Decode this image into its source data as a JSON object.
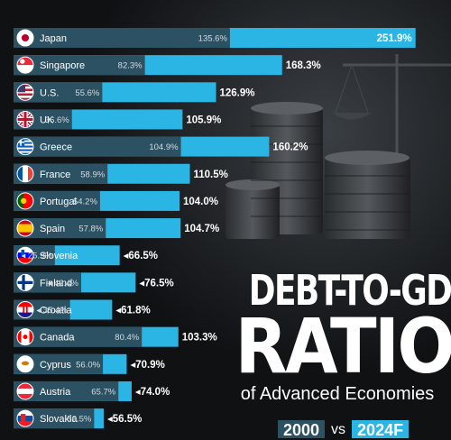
{
  "chart_data": {
    "type": "bar",
    "title": "DEBT-TO-GDP RATIO",
    "subtitle": "of Advanced Economies",
    "legend": [
      {
        "label": "2000",
        "color": "#2b5163"
      },
      {
        "label": "vs",
        "color": ""
      },
      {
        "label": "2024F",
        "color": "#2bb5e5"
      }
    ],
    "xlim": [
      0,
      260
    ],
    "categories": [
      "Japan",
      "Singapore",
      "U.S.",
      "UK",
      "Greece",
      "France",
      "Portugal",
      "Spain",
      "Slovenia",
      "Finland",
      "Croatia",
      "Canada",
      "Cyprus",
      "Austria",
      "Slovakia"
    ],
    "series": [
      {
        "name": "2000",
        "values": [
          135.6,
          82.3,
          55.6,
          36.6,
          104.9,
          58.9,
          54.2,
          57.8,
          25.9,
          42.4,
          35.4,
          80.4,
          56.0,
          65.7,
          50.5
        ]
      },
      {
        "name": "2024F",
        "values": [
          251.9,
          168.3,
          126.9,
          105.9,
          160.2,
          110.5,
          104.0,
          104.7,
          66.5,
          76.5,
          61.8,
          103.3,
          70.9,
          74.0,
          56.5
        ]
      }
    ],
    "labels_2000": [
      "135.6%",
      "82.3%",
      "55.6%",
      "36.6%",
      "104.9%",
      "58.9%",
      "54.2%",
      "57.8%",
      "◂ 25.9%",
      "◂ 42.4%",
      "◂ 35.4%",
      "80.4%",
      "56.0%",
      "65.7%",
      "50.5%"
    ],
    "labels_2024": [
      "251.9%",
      "168.3%",
      "126.9%",
      "105.9%",
      "160.2%",
      "110.5%",
      "104.0%",
      "104.7%",
      "◂66.5%",
      "◂76.5%",
      "◂61.8%",
      "103.3%",
      "◂70.9%",
      "◂74.0%",
      "◂56.5%"
    ],
    "flags": [
      "japan-flag-icon",
      "singapore-flag-icon",
      "us-flag-icon",
      "uk-flag-icon",
      "greece-flag-icon",
      "france-flag-icon",
      "portugal-flag-icon",
      "spain-flag-icon",
      "slovenia-flag-icon",
      "finland-flag-icon",
      "croatia-flag-icon",
      "canada-flag-icon",
      "cyprus-flag-icon",
      "austria-flag-icon",
      "slovakia-flag-icon"
    ],
    "grid": false
  },
  "title": {
    "line1": "DEBT-TO-GDP",
    "line2": "RATIO",
    "subtitle": "of Advanced Economies"
  },
  "legend": {
    "y2000": "2000",
    "vs": "vs",
    "y2024": "2024F"
  },
  "colors": {
    "bar_2000": "#2b5163",
    "bar_2024": "#2bb5e5",
    "background": "#0f1113"
  }
}
